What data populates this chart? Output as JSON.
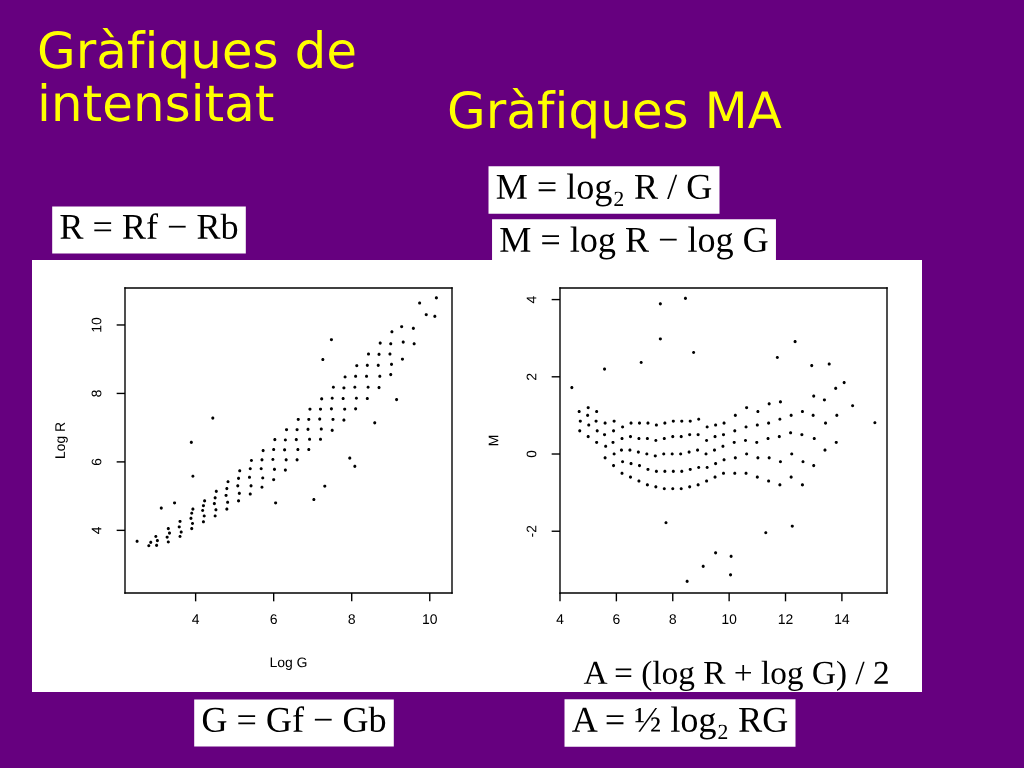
{
  "chart_data": [
    {
      "type": "scatter",
      "title": "Gràfiques de\nintensitat",
      "xlabel": "Log G",
      "ylabel": "Log R",
      "color": "#000000",
      "marker": "circle",
      "xlim": [
        2.19,
        10.57
      ],
      "ylim": [
        2.17,
        11.08
      ],
      "xticks": [
        4,
        6,
        8,
        10
      ],
      "yticks": [
        4,
        6,
        8,
        10
      ],
      "annotations": [
        "R = Rf − Rb",
        "G = Gf − Gb"
      ],
      "x": [
        2.5,
        2.8,
        2.85,
        3.0,
        3.02,
        2.98,
        3.3,
        3.27,
        3.33,
        3.3,
        3.6,
        3.63,
        3.58,
        3.6,
        3.9,
        3.92,
        3.88,
        3.9,
        3.93,
        4.2,
        4.22,
        4.18,
        4.2,
        4.23,
        4.5,
        4.52,
        4.48,
        4.5,
        4.53,
        4.8,
        4.82,
        4.78,
        4.8,
        4.83,
        5.1,
        5.12,
        5.08,
        5.1,
        5.13,
        5.4,
        5.42,
        5.38,
        5.4,
        5.43,
        5.7,
        5.72,
        5.68,
        5.7,
        5.73,
        6.0,
        6.02,
        5.98,
        6.0,
        6.03,
        6.3,
        6.32,
        6.28,
        6.3,
        6.33,
        6.6,
        6.62,
        6.58,
        6.6,
        6.63,
        6.9,
        6.92,
        6.88,
        6.9,
        6.93,
        7.2,
        7.22,
        7.18,
        7.2,
        7.23,
        7.5,
        7.52,
        7.48,
        7.5,
        7.53,
        7.8,
        7.82,
        7.78,
        7.8,
        7.83,
        8.1,
        8.12,
        8.08,
        8.1,
        8.13,
        8.4,
        8.42,
        8.38,
        8.4,
        8.43,
        8.7,
        8.72,
        8.68,
        8.7,
        8.73,
        9.0,
        9.02,
        8.98,
        9.0,
        9.03,
        9.3,
        9.32,
        9.28,
        9.6,
        9.58,
        10.17,
        10.13,
        9.74,
        9.91,
        4.44,
        3.89,
        3.93,
        7.48,
        7.26,
        7.95,
        8.08,
        7.03,
        7.31,
        9.15,
        8.59,
        6.05,
        3.12,
        3.46
      ],
      "values": [
        3.68,
        3.55,
        3.65,
        3.56,
        3.7,
        3.82,
        3.66,
        3.8,
        3.92,
        4.05,
        3.82,
        3.95,
        4.1,
        4.26,
        4.05,
        4.2,
        4.35,
        4.5,
        4.62,
        4.25,
        4.42,
        4.58,
        4.72,
        4.86,
        4.42,
        4.6,
        4.78,
        4.95,
        5.14,
        4.62,
        4.82,
        5.02,
        5.22,
        5.42,
        4.86,
        5.08,
        5.3,
        5.52,
        5.74,
        5.06,
        5.3,
        5.55,
        5.8,
        6.04,
        5.26,
        5.53,
        5.8,
        6.06,
        6.33,
        5.48,
        5.78,
        6.07,
        6.36,
        6.65,
        5.76,
        6.06,
        6.35,
        6.64,
        6.94,
        6.06,
        6.36,
        6.65,
        6.94,
        7.24,
        6.36,
        6.66,
        6.95,
        7.24,
        7.54,
        6.66,
        6.96,
        7.25,
        7.54,
        7.84,
        6.92,
        7.24,
        7.55,
        7.86,
        8.18,
        7.22,
        7.54,
        7.85,
        8.16,
        8.48,
        7.55,
        7.86,
        8.18,
        8.5,
        8.81,
        7.85,
        8.18,
        8.5,
        8.82,
        9.15,
        8.17,
        8.5,
        8.82,
        9.14,
        9.47,
        8.55,
        8.85,
        9.15,
        9.45,
        9.8,
        9.0,
        9.5,
        9.95,
        9.45,
        9.9,
        10.79,
        10.25,
        10.64,
        10.3,
        7.28,
        6.57,
        5.58,
        9.57,
        8.99,
        6.11,
        5.87,
        4.9,
        5.29,
        7.82,
        7.14,
        4.8,
        4.65,
        4.8
      ]
    },
    {
      "type": "scatter",
      "title": "Gràfiques MA",
      "xlabel": "A = (log R + log G) / 2",
      "ylabel": "M",
      "color": "#000000",
      "marker": "circle",
      "xlim": [
        4.0,
        15.6
      ],
      "ylim": [
        -3.6,
        4.3
      ],
      "xticks": [
        4,
        6,
        8,
        10,
        12,
        14
      ],
      "yticks": [
        -2,
        0,
        2,
        4
      ],
      "annotations": [
        "M = log₂ R / G",
        "M = log R − log G",
        "A = ½ log₂ RG"
      ],
      "x": [
        4.42,
        4.7,
        4.72,
        4.68,
        5.0,
        5.02,
        4.98,
        5.0,
        5.3,
        5.32,
        5.28,
        5.3,
        5.6,
        5.62,
        5.58,
        5.6,
        5.9,
        5.92,
        5.88,
        5.9,
        5.92,
        6.2,
        6.22,
        6.18,
        6.2,
        6.22,
        6.5,
        6.52,
        6.48,
        6.5,
        6.52,
        6.8,
        6.82,
        6.78,
        6.8,
        6.82,
        7.1,
        7.12,
        7.08,
        7.1,
        7.12,
        7.4,
        7.42,
        7.38,
        7.4,
        7.42,
        7.7,
        7.72,
        7.68,
        7.7,
        7.72,
        8.0,
        8.02,
        7.98,
        8.0,
        8.02,
        8.3,
        8.32,
        8.28,
        8.3,
        8.32,
        8.6,
        8.62,
        8.58,
        8.6,
        8.62,
        8.9,
        8.92,
        8.88,
        8.9,
        8.92,
        9.2,
        9.22,
        9.18,
        9.2,
        9.22,
        9.5,
        9.52,
        9.48,
        9.5,
        9.52,
        9.8,
        9.82,
        9.78,
        9.8,
        9.82,
        10.2,
        10.22,
        10.18,
        10.2,
        10.22,
        10.6,
        10.62,
        10.58,
        10.6,
        10.62,
        11.0,
        11.02,
        10.98,
        11.0,
        11.02,
        11.4,
        11.42,
        11.38,
        11.4,
        11.42,
        11.8,
        11.82,
        11.78,
        11.8,
        11.82,
        12.2,
        12.22,
        12.18,
        12.2,
        12.6,
        12.62,
        12.58,
        12.6,
        13.0,
        13.02,
        12.98,
        13.0,
        13.4,
        13.42,
        13.38,
        13.8,
        13.82,
        13.78,
        8.45,
        7.56,
        7.56,
        12.34,
        5.58,
        12.93,
        13.55,
        6.88,
        15.17,
        14.38,
        14.08,
        8.51,
        10.05,
        10.07,
        9.52,
        9.08,
        11.3,
        12.24,
        7.76,
        8.74,
        11.71
      ],
      "values": [
        1.72,
        0.6,
        0.85,
        1.1,
        0.45,
        0.75,
        1.0,
        1.2,
        0.3,
        0.6,
        0.85,
        1.1,
        -0.1,
        0.2,
        0.5,
        0.8,
        -0.3,
        0.0,
        0.3,
        0.6,
        0.85,
        -0.5,
        -0.2,
        0.1,
        0.4,
        0.7,
        -0.6,
        -0.25,
        0.1,
        0.45,
        0.8,
        -0.7,
        -0.3,
        0.05,
        0.4,
        0.8,
        -0.8,
        -0.4,
        0.0,
        0.4,
        0.8,
        -0.85,
        -0.45,
        -0.05,
        0.35,
        0.75,
        -0.9,
        -0.45,
        0.0,
        0.4,
        0.8,
        -0.9,
        -0.45,
        0.0,
        0.45,
        0.85,
        -0.9,
        -0.45,
        0.0,
        0.45,
        0.85,
        -0.85,
        -0.4,
        0.05,
        0.5,
        0.85,
        -0.8,
        -0.35,
        0.1,
        0.5,
        0.9,
        -0.7,
        -0.35,
        0.0,
        0.35,
        0.7,
        -0.6,
        -0.25,
        0.1,
        0.45,
        0.75,
        -0.5,
        -0.15,
        0.2,
        0.5,
        0.8,
        -0.5,
        -0.1,
        0.3,
        0.6,
        1.0,
        -0.5,
        0.0,
        0.35,
        0.7,
        1.2,
        -0.6,
        -0.1,
        0.3,
        0.75,
        1.1,
        -0.7,
        -0.1,
        0.4,
        0.8,
        1.3,
        -0.8,
        -0.2,
        0.45,
        0.9,
        1.35,
        -0.6,
        0.0,
        0.55,
        1.0,
        -0.8,
        -0.2,
        0.5,
        1.1,
        -0.3,
        0.4,
        1.0,
        1.5,
        0.1,
        0.8,
        1.4,
        0.3,
        1.0,
        1.7,
        4.03,
        3.89,
        2.98,
        2.91,
        2.2,
        2.29,
        2.33,
        2.37,
        0.81,
        1.25,
        1.85,
        -3.3,
        -3.13,
        -2.65,
        -2.56,
        -2.91,
        -2.04,
        -1.87,
        -1.78,
        2.63,
        2.5
      ]
    }
  ]
}
